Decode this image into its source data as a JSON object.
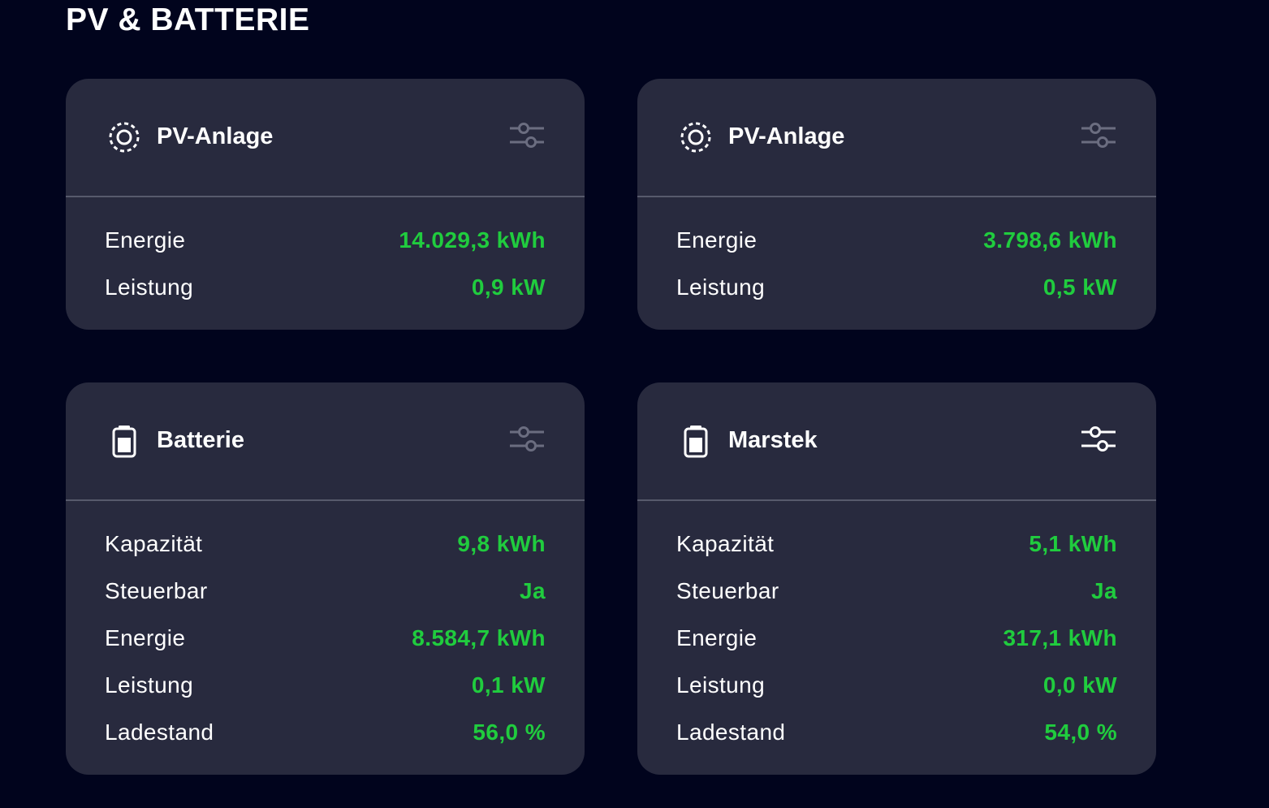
{
  "section_title": "PV & BATTERIE",
  "cards": [
    {
      "title": "PV-Anlage",
      "rows": [
        {
          "label": "Energie",
          "value": "14.029,3 kWh"
        },
        {
          "label": "Leistung",
          "value": "0,9 kW"
        }
      ]
    },
    {
      "title": "PV-Anlage",
      "rows": [
        {
          "label": "Energie",
          "value": "3.798,6 kWh"
        },
        {
          "label": "Leistung",
          "value": "0,5 kW"
        }
      ]
    },
    {
      "title": "Batterie",
      "rows": [
        {
          "label": "Kapazität",
          "value": "9,8 kWh"
        },
        {
          "label": "Steuerbar",
          "value": "Ja"
        },
        {
          "label": "Energie",
          "value": "8.584,7 kWh"
        },
        {
          "label": "Leistung",
          "value": "0,1 kW"
        },
        {
          "label": "Ladestand",
          "value": "56,0 %"
        }
      ]
    },
    {
      "title": "Marstek",
      "rows": [
        {
          "label": "Kapazität",
          "value": "5,1 kWh"
        },
        {
          "label": "Steuerbar",
          "value": "Ja"
        },
        {
          "label": "Energie",
          "value": "317,1 kWh"
        },
        {
          "label": "Leistung",
          "value": "0,0 kW"
        },
        {
          "label": "Ladestand",
          "value": "54,0 %"
        }
      ]
    }
  ]
}
